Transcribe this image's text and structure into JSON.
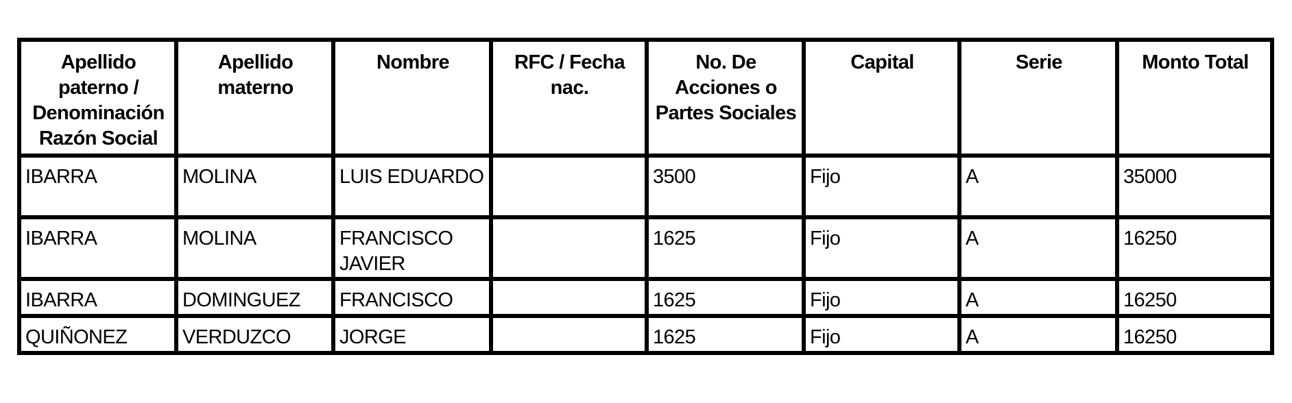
{
  "table": {
    "headers": [
      "Apellido paterno / Denominación Razón Social",
      "Apellido materno",
      "Nombre",
      "RFC / Fecha nac.",
      "No. De Acciones o Partes Sociales",
      "Capital",
      "Serie",
      "Monto Total"
    ],
    "rows": [
      [
        "IBARRA",
        "MOLINA",
        "LUIS EDUARDO",
        "",
        "3500",
        "Fijo",
        "A",
        "35000"
      ],
      [
        "IBARRA",
        "MOLINA",
        "FRANCISCO JAVIER",
        "",
        "1625",
        "Fijo",
        "A",
        "16250"
      ],
      [
        "IBARRA",
        "DOMINGUEZ",
        "FRANCISCO",
        "",
        "1625",
        "Fijo",
        "A",
        "16250"
      ],
      [
        "QUIÑONEZ",
        "VERDUZCO",
        "JORGE",
        "",
        "1625",
        "Fijo",
        "A",
        "16250"
      ]
    ]
  }
}
